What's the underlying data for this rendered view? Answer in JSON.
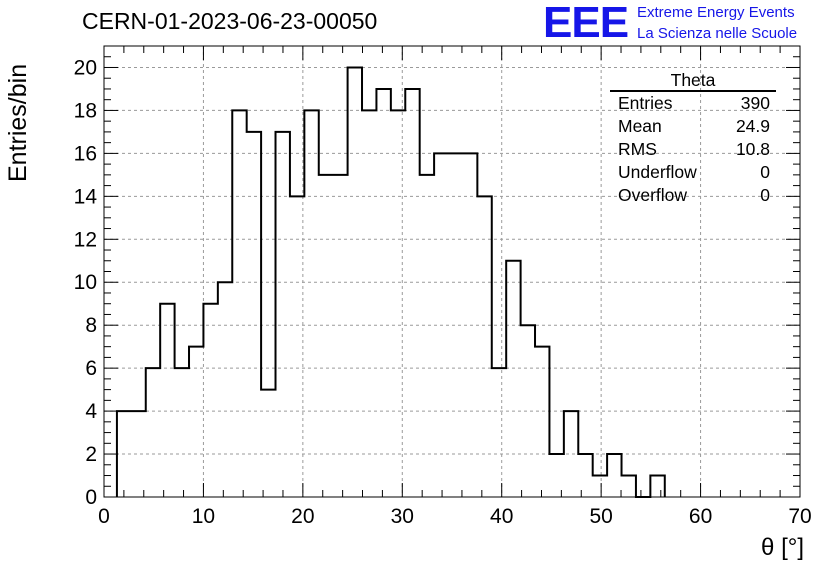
{
  "title": "CERN-01-2023-06-23-00050",
  "logo": {
    "text": "EEE",
    "line1": "Extreme Energy Events",
    "line2": "La Scienza nelle Scuole",
    "color": "#1616e8"
  },
  "stats": {
    "title": "Theta",
    "rows": [
      {
        "label": "Entries",
        "value": "390"
      },
      {
        "label": "Mean",
        "value": "24.9"
      },
      {
        "label": "RMS",
        "value": "10.8"
      },
      {
        "label": "Underflow",
        "value": "0"
      },
      {
        "label": "Overflow",
        "value": "0"
      }
    ]
  },
  "chart_data": {
    "type": "histogram",
    "title": "CERN-01-2023-06-23-00050",
    "xlabel": "θ [°]",
    "ylabel": "Entries/bin",
    "xlim": [
      0,
      70
    ],
    "ylim": [
      0,
      21
    ],
    "xticks": [
      0,
      10,
      20,
      30,
      40,
      50,
      60,
      70
    ],
    "yticks": [
      0,
      2,
      4,
      6,
      8,
      10,
      12,
      14,
      16,
      18,
      20
    ],
    "grid": true,
    "bin_start": 1.3,
    "bin_width": 1.45,
    "counts": [
      4,
      4,
      6,
      9,
      6,
      7,
      9,
      10,
      18,
      17,
      5,
      17,
      14,
      18,
      15,
      15,
      20,
      18,
      19,
      18,
      19,
      15,
      16,
      16,
      16,
      14,
      6,
      11,
      8,
      7,
      2,
      4,
      2,
      1,
      2,
      1,
      0,
      1
    ]
  }
}
